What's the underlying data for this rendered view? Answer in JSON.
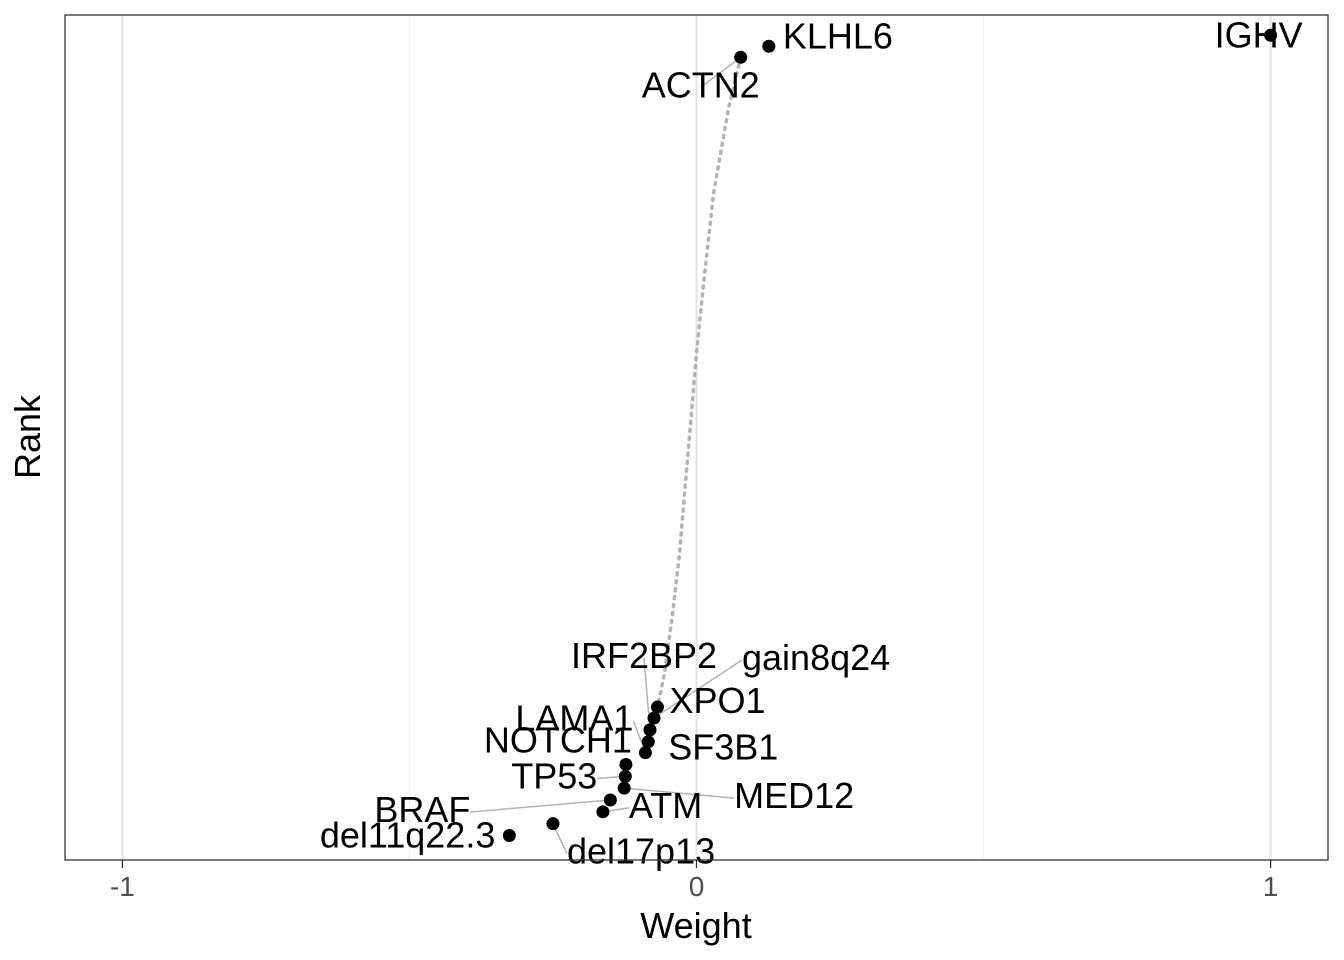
{
  "chart_data": {
    "type": "scatter",
    "title": "",
    "xlabel": "Weight",
    "ylabel": "Rank",
    "xlim": [
      -1.1,
      1.1
    ],
    "x_ticks": [
      -1,
      0,
      1
    ],
    "x_tick_labels": [
      "-1",
      "0",
      "1"
    ],
    "y_ticks_shown": false,
    "grid": "vertical-major-and-minor",
    "legend": "none",
    "point_color": "#000000",
    "line_color": "#b3b3b3",
    "connector_color": "#b3b3b3",
    "labeled_points": [
      {
        "label": "IGHV",
        "weight": 1.0,
        "rank_level": 0.976
      },
      {
        "label": "KLHL6",
        "weight": 0.126,
        "rank_level": 0.963
      },
      {
        "label": "ACTN2",
        "weight": 0.077,
        "rank_level": 0.95
      },
      {
        "label": "XPO1",
        "weight": -0.068,
        "rank_level": 0.181
      },
      {
        "label": "gain8q24",
        "weight": -0.074,
        "rank_level": 0.168
      },
      {
        "label": "IRF2BP2",
        "weight": -0.081,
        "rank_level": 0.154
      },
      {
        "label": "SF3B1",
        "weight": -0.084,
        "rank_level": 0.14
      },
      {
        "label": "LAMA1",
        "weight": -0.089,
        "rank_level": 0.127
      },
      {
        "label": "NOTCH1",
        "weight": -0.123,
        "rank_level": 0.113
      },
      {
        "label": "TP53",
        "weight": -0.124,
        "rank_level": 0.099
      },
      {
        "label": "MED12",
        "weight": -0.126,
        "rank_level": 0.085
      },
      {
        "label": "BRAF",
        "weight": -0.15,
        "rank_level": 0.071
      },
      {
        "label": "ATM",
        "weight": -0.163,
        "rank_level": 0.057
      },
      {
        "label": "del17p13",
        "weight": -0.25,
        "rank_level": 0.043
      },
      {
        "label": "del11q22.3",
        "weight": -0.326,
        "rank_level": 0.029
      }
    ],
    "trend_line": [
      {
        "weight": 0.077,
        "rank_level": 0.95
      },
      {
        "weight": 0.056,
        "rank_level": 0.89
      },
      {
        "weight": 0.03,
        "rank_level": 0.79
      },
      {
        "weight": 0.012,
        "rank_level": 0.68
      },
      {
        "weight": 0.0,
        "rank_level": 0.6
      },
      {
        "weight": -0.01,
        "rank_level": 0.52
      },
      {
        "weight": -0.02,
        "rank_level": 0.44
      },
      {
        "weight": -0.03,
        "rank_level": 0.36
      },
      {
        "weight": -0.042,
        "rank_level": 0.29
      },
      {
        "weight": -0.056,
        "rank_level": 0.22
      },
      {
        "weight": -0.068,
        "rank_level": 0.181
      }
    ]
  }
}
